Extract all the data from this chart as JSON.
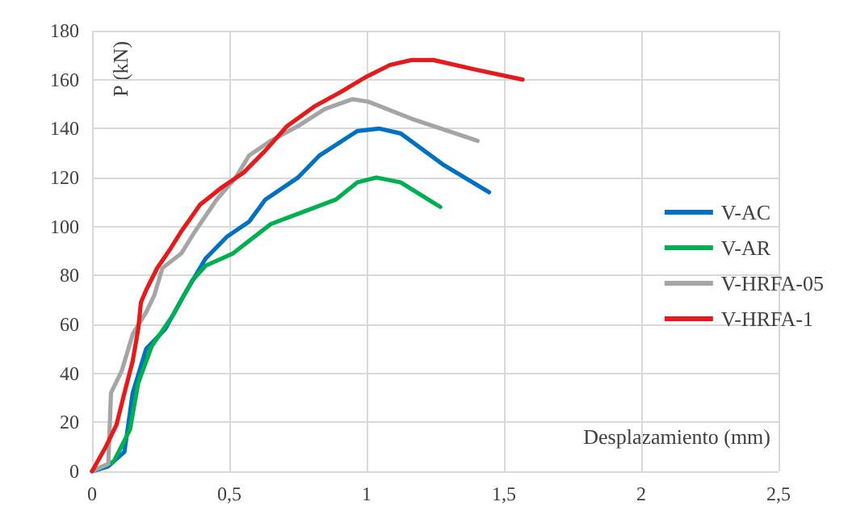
{
  "chart_data": {
    "type": "line",
    "xlabel": "Desplazamiento (mm)",
    "ylabel": "P (kN)",
    "xlim": [
      0,
      2.5
    ],
    "xticks": [
      0,
      {
        "value": 0.5,
        "label": "0,5"
      },
      1,
      {
        "value": 1.5,
        "label": "1,5"
      },
      2,
      {
        "value": 2.5,
        "label": "2,5"
      }
    ],
    "ylim": [
      0,
      180
    ],
    "yticks": [
      0,
      20,
      40,
      60,
      80,
      100,
      120,
      140,
      160,
      180
    ],
    "grid": true,
    "legend": "right",
    "marker": "none",
    "line_style": "solid",
    "series": [
      {
        "name": "V-AC",
        "color": "#0070c0",
        "x": [
          0,
          0.059,
          0.118,
          0.148,
          0.197,
          0.266,
          0.335,
          0.414,
          0.493,
          0.572,
          0.631,
          0.75,
          0.828,
          0.966,
          1.045,
          1.124,
          1.282,
          1.446
        ],
        "values": [
          0,
          2,
          8,
          32,
          50,
          58,
          72,
          87,
          96,
          102,
          111,
          120,
          129,
          139,
          140,
          138,
          125,
          114
        ]
      },
      {
        "name": "V-AR",
        "color": "#00b050",
        "x": [
          0,
          0.079,
          0.138,
          0.168,
          0.217,
          0.296,
          0.365,
          0.414,
          0.513,
          0.651,
          0.769,
          0.888,
          0.966,
          1.035,
          1.124,
          1.268
        ],
        "values": [
          0,
          4,
          17,
          36,
          51,
          64,
          78,
          84,
          89,
          101,
          106,
          111,
          118,
          120,
          118,
          108
        ]
      },
      {
        "name": "V-HRFA-05",
        "color": "#a5a5a5",
        "x": [
          0,
          0.059,
          0.069,
          0.108,
          0.148,
          0.197,
          0.227,
          0.256,
          0.325,
          0.375,
          0.454,
          0.523,
          0.572,
          0.651,
          0.75,
          0.848,
          0.947,
          1.006,
          1.164,
          1.404
        ],
        "values": [
          0,
          3,
          32,
          41,
          56,
          65,
          72,
          83,
          89,
          98,
          111,
          120,
          129,
          135,
          141,
          148,
          152,
          151,
          144,
          135
        ]
      },
      {
        "name": "V-HRFA-1",
        "color": "#e51a1a",
        "x": [
          0,
          0.05,
          0.089,
          0.118,
          0.148,
          0.168,
          0.178,
          0.197,
          0.237,
          0.286,
          0.325,
          0.394,
          0.473,
          0.552,
          0.631,
          0.71,
          0.809,
          0.907,
          0.996,
          1.085,
          1.164,
          1.243,
          1.4,
          1.568
        ],
        "values": [
          0,
          10,
          19,
          32,
          45,
          58,
          69,
          74,
          83,
          91,
          98,
          109,
          116,
          122,
          131,
          141,
          149,
          155,
          161,
          166,
          168,
          168,
          164,
          160
        ]
      }
    ]
  }
}
